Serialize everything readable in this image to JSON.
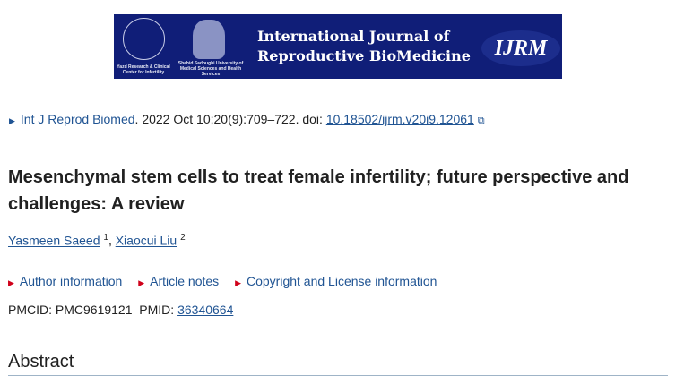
{
  "banner": {
    "caption1": "Yazd Research & Clinical Center for Infertility",
    "caption2": "Shahid Sadoughi University of Medical Sciences and Health Services",
    "title_line1": "International Journal of",
    "title_line2": "Reproductive BioMedicine",
    "abbr": "IJRM",
    "bg": "#101e78"
  },
  "citation": {
    "journal": "Int J Reprod Biomed",
    "details": ". 2022 Oct 10;20(9):709–722. doi: ",
    "doi": "10.18502/ijrm.v20i9.12061"
  },
  "title": "Mesenchymal stem cells to treat female infertility; future perspective and challenges: A review",
  "authors": [
    {
      "name": "Yasmeen Saeed",
      "sup": "1"
    },
    {
      "name": "Xiaocui Liu",
      "sup": "2"
    }
  ],
  "links": [
    "Author information",
    "Article notes",
    "Copyright and License information"
  ],
  "ids": {
    "pmcid_label": "PMCID: PMC9619121",
    "pmid_label": "PMID: ",
    "pmid": "36340664"
  },
  "abstract_heading": "Abstract"
}
